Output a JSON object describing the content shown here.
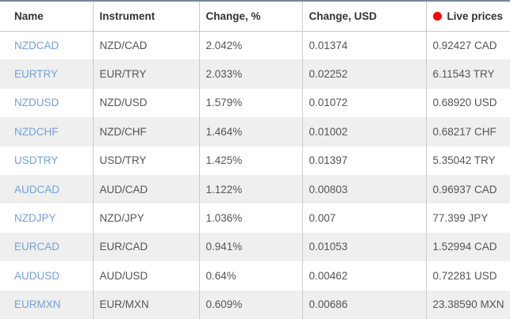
{
  "widget": {
    "kind": "forex-quotes-table"
  },
  "colors": {
    "top_bar": "#74859c",
    "live_dot": "#ff0000",
    "symbol_link": "#74a1d8",
    "row_stripe": "#efefef",
    "separator": "#cccccc",
    "header_text": "#333333",
    "cell_text": "#555555"
  },
  "table": {
    "columns": [
      {
        "key": "name",
        "label": "Name"
      },
      {
        "key": "instrument",
        "label": "Instrument"
      },
      {
        "key": "change_pct",
        "label": "Change, %"
      },
      {
        "key": "change_usd",
        "label": "Change, USD"
      },
      {
        "key": "live_price",
        "label": "Live prices"
      }
    ],
    "rows": [
      {
        "name": "NZDCAD",
        "instrument": "NZD/CAD",
        "change_pct": "2.042%",
        "change_usd": "0.01374",
        "live_price": "0.92427 CAD"
      },
      {
        "name": "EURTRY",
        "instrument": "EUR/TRY",
        "change_pct": "2.033%",
        "change_usd": "0.02252",
        "live_price": "6.11543 TRY"
      },
      {
        "name": "NZDUSD",
        "instrument": "NZD/USD",
        "change_pct": "1.579%",
        "change_usd": "0.01072",
        "live_price": "0.68920 USD"
      },
      {
        "name": "NZDCHF",
        "instrument": "NZD/CHF",
        "change_pct": "1.464%",
        "change_usd": "0.01002",
        "live_price": "0.68217 CHF"
      },
      {
        "name": "USDTRY",
        "instrument": "USD/TRY",
        "change_pct": "1.425%",
        "change_usd": "0.01397",
        "live_price": "5.35042 TRY"
      },
      {
        "name": "AUDCAD",
        "instrument": "AUD/CAD",
        "change_pct": "1.122%",
        "change_usd": "0.00803",
        "live_price": "0.96937 CAD"
      },
      {
        "name": "NZDJPY",
        "instrument": "NZD/JPY",
        "change_pct": "1.036%",
        "change_usd": "0.007",
        "live_price": "77.399 JPY"
      },
      {
        "name": "EURCAD",
        "instrument": "EUR/CAD",
        "change_pct": "0.941%",
        "change_usd": "0.01053",
        "live_price": "1.52994 CAD"
      },
      {
        "name": "AUDUSD",
        "instrument": "AUD/USD",
        "change_pct": "0.64%",
        "change_usd": "0.00462",
        "live_price": "0.72281 USD"
      },
      {
        "name": "EURMXN",
        "instrument": "EUR/MXN",
        "change_pct": "0.609%",
        "change_usd": "0.00686",
        "live_price": "23.38590 MXN"
      }
    ]
  }
}
